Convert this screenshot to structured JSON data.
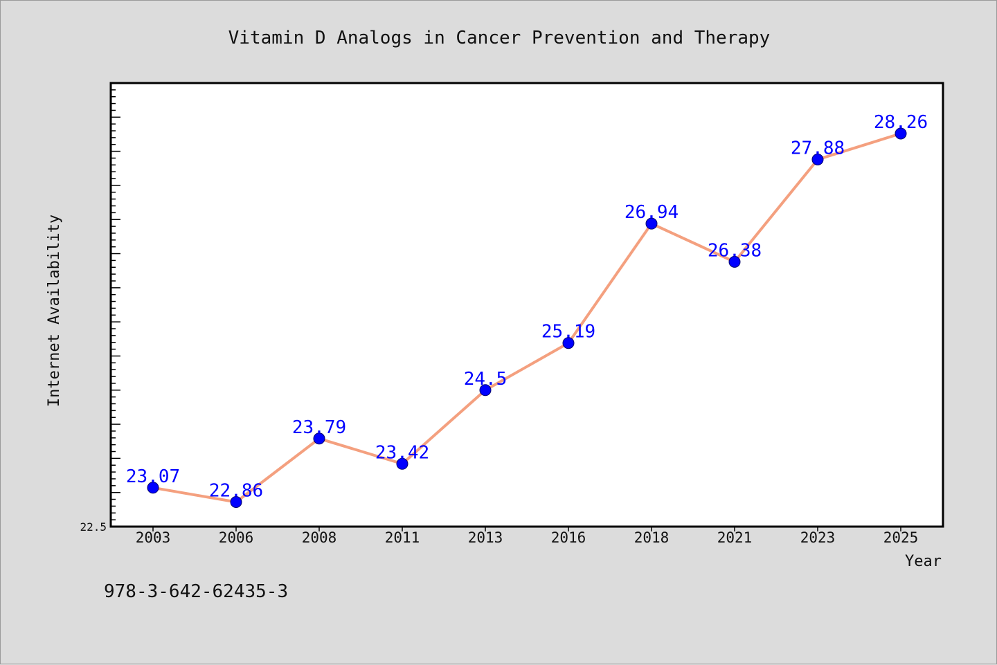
{
  "chart_data": {
    "type": "line",
    "title": "Vitamin D Analogs in Cancer Prevention and Therapy",
    "xlabel": "Year",
    "ylabel": "Internet Availability",
    "categories": [
      "2003",
      "2006",
      "2008",
      "2011",
      "2013",
      "2016",
      "2018",
      "2021",
      "2023",
      "2025"
    ],
    "series": [
      {
        "values": [
          23.07,
          22.86,
          23.79,
          23.42,
          24.5,
          25.19,
          26.94,
          26.38,
          27.88,
          28.26
        ],
        "line_color": "#f4a07f",
        "marker_color": "#0000ff"
      }
    ],
    "y_min_label": "22.5",
    "ylim": [
      22.5,
      29.0
    ],
    "grid": false,
    "legend": "none"
  },
  "footer": {
    "isbn": "978-3-642-62435-3"
  }
}
